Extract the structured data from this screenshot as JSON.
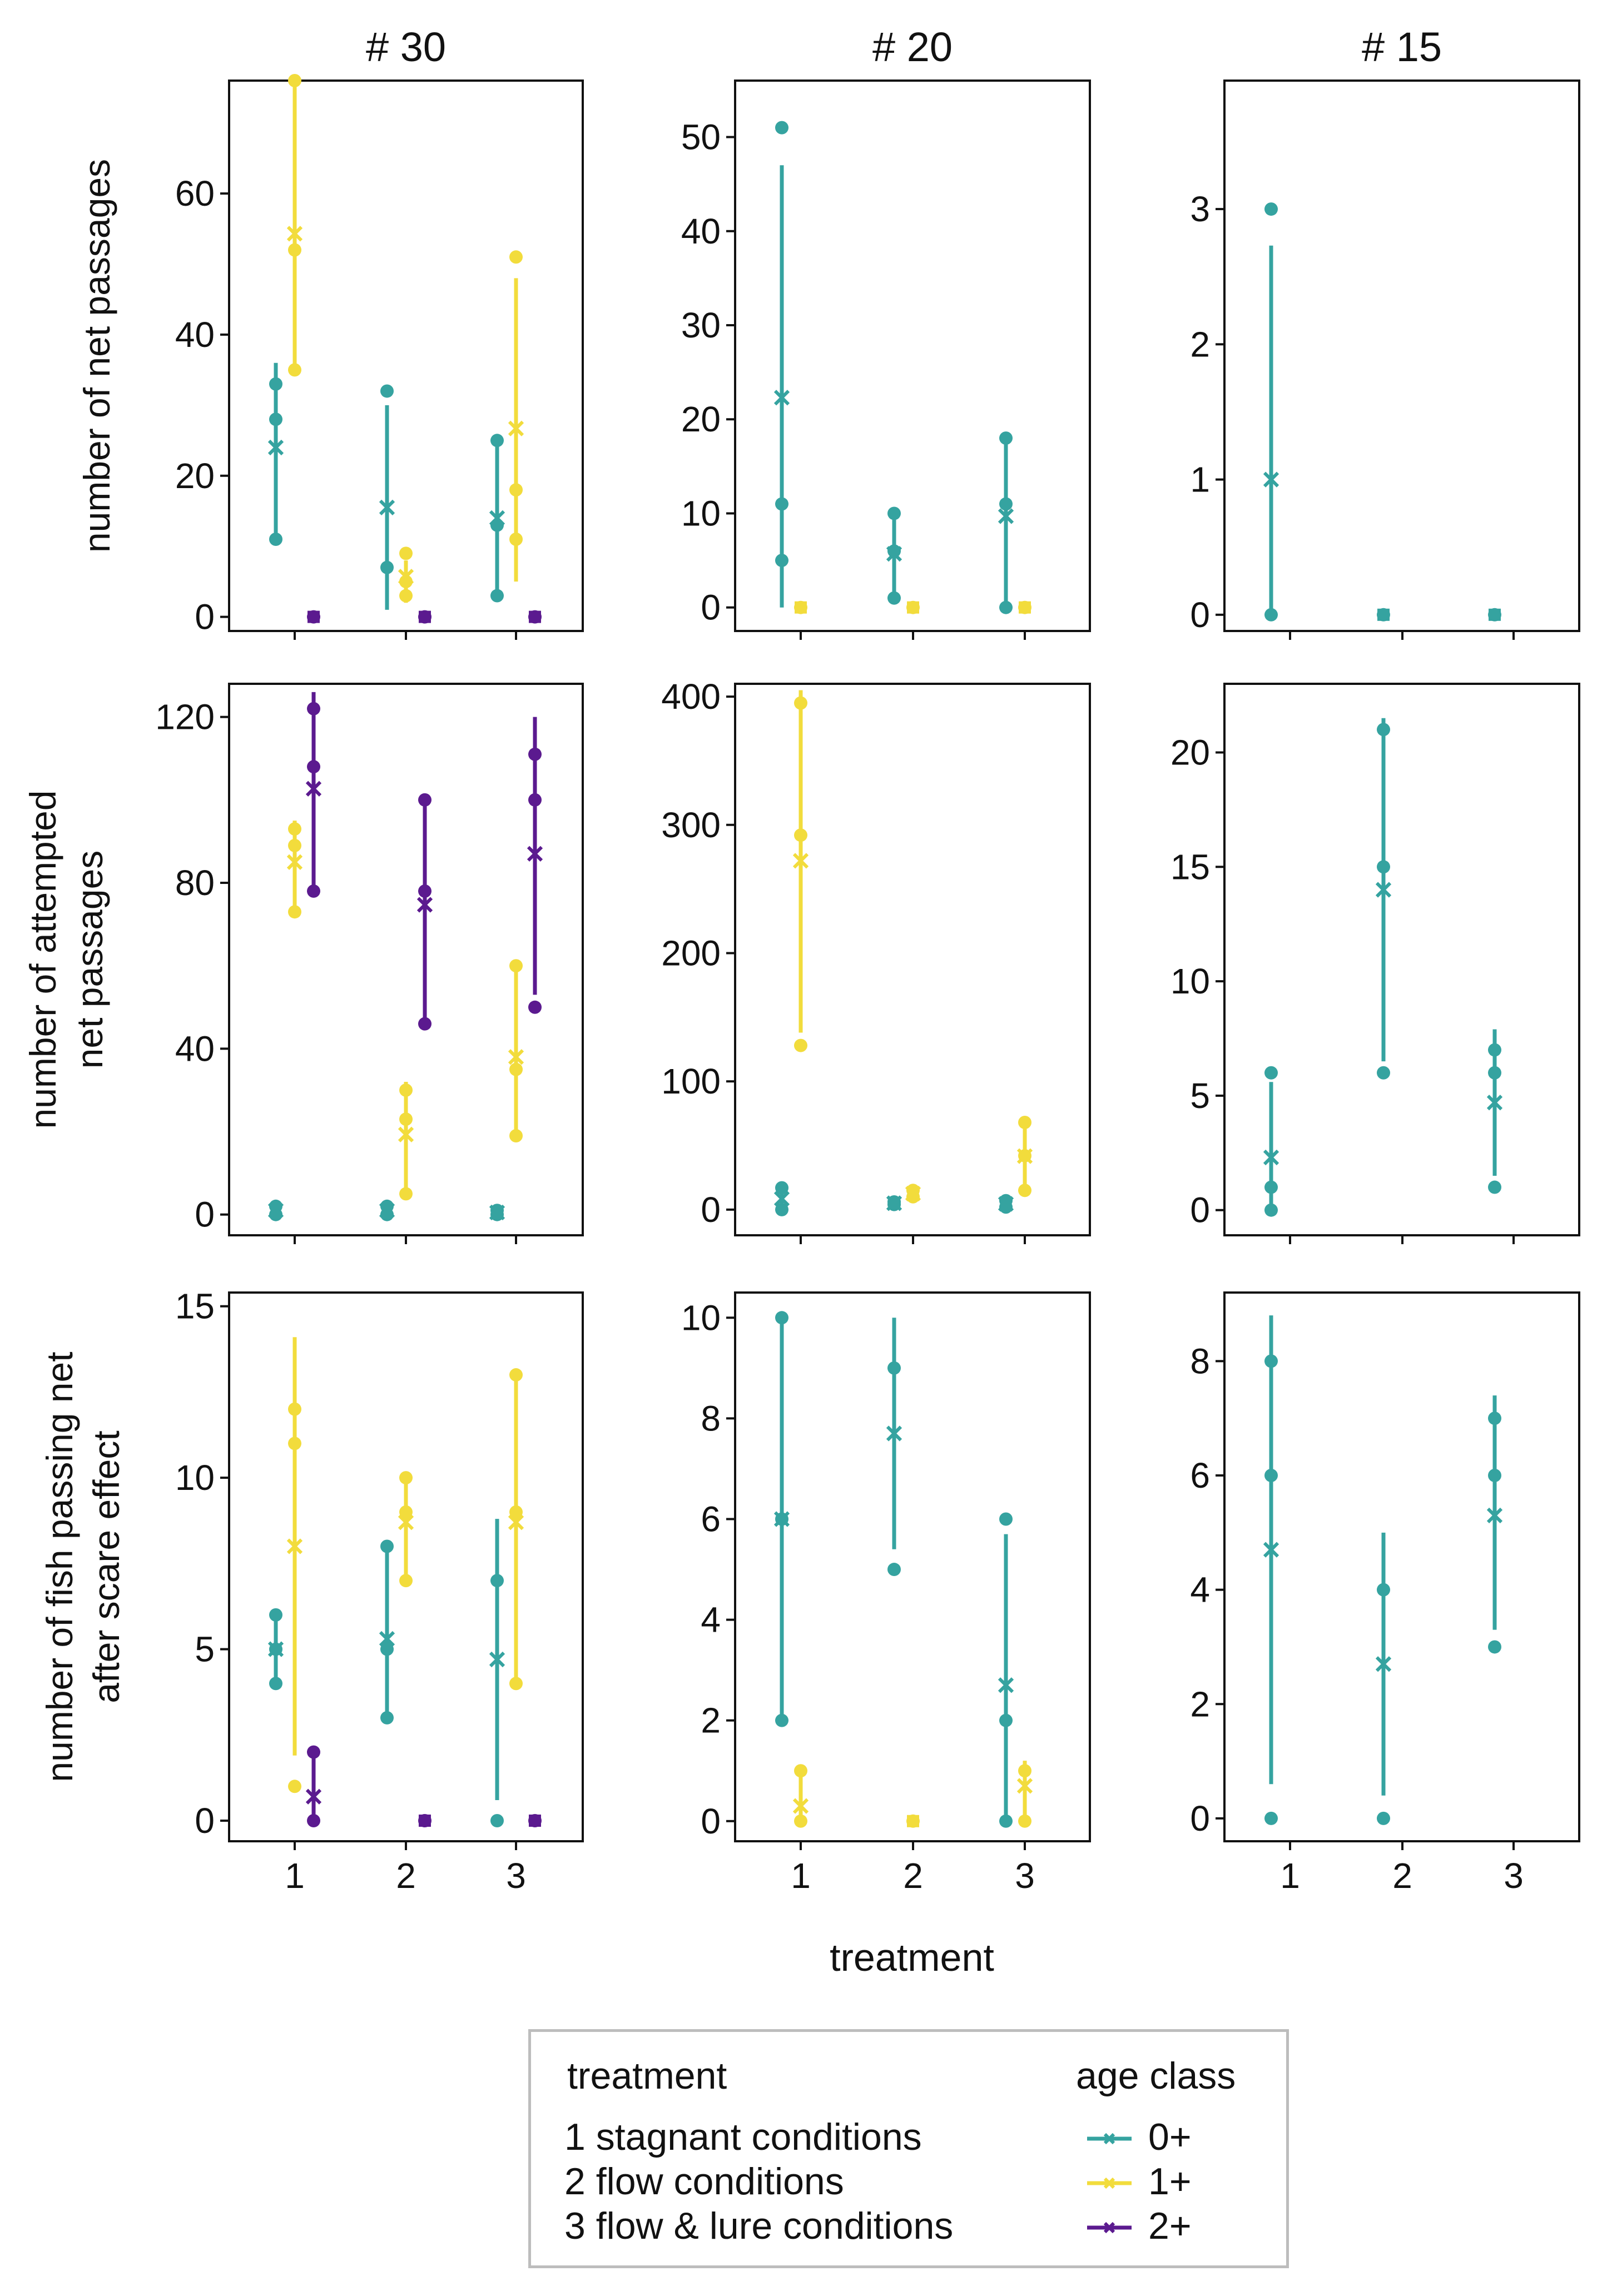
{
  "chart_data": {
    "type": "scatter",
    "xlabel": "treatment",
    "columns": [
      "# 30",
      "# 20",
      "# 15"
    ],
    "rows": [
      "number of net passages",
      "number of attempted\nnet passages",
      "number of fish passing net\nafter scare effect"
    ],
    "x_ticks": [
      "1",
      "2",
      "3"
    ],
    "age_classes": [
      "0+",
      "1+",
      "2+"
    ],
    "colors": {
      "0+": "#35a3a0",
      "1+": "#f2dc3c",
      "2+": "#5b1a8f"
    },
    "panels": [
      {
        "id": "r1c1",
        "ylim": [
          -2,
          76
        ],
        "yticks": [
          0,
          20,
          40,
          60
        ],
        "series": [
          {
            "age": "0+",
            "t": 1,
            "points": [
              33,
              28,
              11
            ],
            "mean": 24,
            "ci": [
              11,
              36
            ]
          },
          {
            "age": "1+",
            "t": 1,
            "points": [
              76,
              52,
              35
            ],
            "mean": 54.3,
            "ci": [
              35,
              76
            ]
          },
          {
            "age": "2+",
            "t": 1,
            "points": [
              0
            ],
            "mean": 0,
            "ci": null
          },
          {
            "age": "0+",
            "t": 2,
            "points": [
              32,
              7
            ],
            "mean": 15.5,
            "ci": [
              1,
              30
            ]
          },
          {
            "age": "1+",
            "t": 2,
            "points": [
              9,
              5,
              3
            ],
            "mean": 5.7,
            "ci": [
              2,
              8
            ]
          },
          {
            "age": "2+",
            "t": 2,
            "points": [
              0
            ],
            "mean": 0,
            "ci": null
          },
          {
            "age": "0+",
            "t": 3,
            "points": [
              25,
              13,
              3
            ],
            "mean": 14,
            "ci": [
              3,
              25
            ]
          },
          {
            "age": "1+",
            "t": 3,
            "points": [
              51,
              18,
              11
            ],
            "mean": 26.7,
            "ci": [
              5,
              48
            ]
          },
          {
            "age": "2+",
            "t": 3,
            "points": [
              0
            ],
            "mean": 0,
            "ci": null
          }
        ]
      },
      {
        "id": "r1c2",
        "ylim": [
          -2.5,
          56
        ],
        "yticks": [
          0,
          10,
          20,
          30,
          40,
          50
        ],
        "series": [
          {
            "age": "0+",
            "t": 1,
            "points": [
              51,
              11,
              5
            ],
            "mean": 22.3,
            "ci": [
              0,
              47
            ]
          },
          {
            "age": "1+",
            "t": 1,
            "points": [
              0
            ],
            "mean": 0,
            "ci": null
          },
          {
            "age": "0+",
            "t": 2,
            "points": [
              10,
              6,
              1
            ],
            "mean": 5.7,
            "ci": [
              1,
              10
            ]
          },
          {
            "age": "1+",
            "t": 2,
            "points": [
              0
            ],
            "mean": 0,
            "ci": null
          },
          {
            "age": "0+",
            "t": 3,
            "points": [
              18,
              11,
              0
            ],
            "mean": 9.7,
            "ci": [
              0,
              18
            ]
          },
          {
            "age": "1+",
            "t": 3,
            "points": [
              0
            ],
            "mean": 0,
            "ci": null
          }
        ]
      },
      {
        "id": "r1c3",
        "ylim": [
          -0.12,
          3.95
        ],
        "yticks": [
          0,
          1,
          2,
          3
        ],
        "series": [
          {
            "age": "0+",
            "t": 1,
            "points": [
              3,
              0
            ],
            "mean": 1,
            "ci": [
              0,
              2.73
            ]
          },
          {
            "age": "0+",
            "t": 2,
            "points": [
              0
            ],
            "mean": 0,
            "ci": null
          },
          {
            "age": "0+",
            "t": 3,
            "points": [
              0
            ],
            "mean": 0,
            "ci": null
          }
        ]
      },
      {
        "id": "r2c1",
        "ylim": [
          -5,
          128
        ],
        "yticks": [
          0,
          40,
          80,
          120
        ],
        "series": [
          {
            "age": "0+",
            "t": 1,
            "points": [
              2,
              0
            ],
            "mean": 1,
            "ci": null
          },
          {
            "age": "1+",
            "t": 1,
            "points": [
              93,
              89,
              73
            ],
            "mean": 85,
            "ci": [
              73,
              95
            ]
          },
          {
            "age": "2+",
            "t": 1,
            "points": [
              122,
              108,
              78
            ],
            "mean": 102.7,
            "ci": [
              78,
              126
            ]
          },
          {
            "age": "0+",
            "t": 2,
            "points": [
              2,
              0
            ],
            "mean": 1,
            "ci": null
          },
          {
            "age": "1+",
            "t": 2,
            "points": [
              30,
              23,
              5
            ],
            "mean": 19.3,
            "ci": [
              5,
              32
            ]
          },
          {
            "age": "2+",
            "t": 2,
            "points": [
              100,
              78,
              46
            ],
            "mean": 74.7,
            "ci": [
              46,
              101
            ]
          },
          {
            "age": "0+",
            "t": 3,
            "points": [
              1,
              0
            ],
            "mean": 0.5,
            "ci": null
          },
          {
            "age": "1+",
            "t": 3,
            "points": [
              60,
              35,
              19
            ],
            "mean": 38,
            "ci": [
              19,
              60
            ]
          },
          {
            "age": "2+",
            "t": 3,
            "points": [
              111,
              100,
              50
            ],
            "mean": 87,
            "ci": [
              53,
              120
            ]
          }
        ]
      },
      {
        "id": "r2c2",
        "ylim": [
          -20,
          410
        ],
        "yticks": [
          0,
          100,
          200,
          300,
          400
        ],
        "series": [
          {
            "age": "0+",
            "t": 1,
            "points": [
              17,
              0
            ],
            "mean": 8.5,
            "ci": [
              0,
              17
            ]
          },
          {
            "age": "1+",
            "t": 1,
            "points": [
              395,
              292,
              128
            ],
            "mean": 272,
            "ci": [
              138,
              405
            ]
          },
          {
            "age": "0+",
            "t": 2,
            "points": [
              6,
              4
            ],
            "mean": 5,
            "ci": [
              3,
              7
            ]
          },
          {
            "age": "1+",
            "t": 2,
            "points": [
              15,
              10
            ],
            "mean": 12.5,
            "ci": [
              9,
              16
            ]
          },
          {
            "age": "0+",
            "t": 3,
            "points": [
              7,
              2
            ],
            "mean": 4.5,
            "ci": [
              1,
              8
            ]
          },
          {
            "age": "1+",
            "t": 3,
            "points": [
              68,
              42,
              15
            ],
            "mean": 41.7,
            "ci": [
              15,
              70
            ]
          }
        ]
      },
      {
        "id": "r2c3",
        "ylim": [
          -1.1,
          23
        ],
        "yticks": [
          0,
          5,
          10,
          15,
          20
        ],
        "series": [
          {
            "age": "0+",
            "t": 1,
            "points": [
              6,
              1,
              0
            ],
            "mean": 2.3,
            "ci": [
              0,
              5.6
            ]
          },
          {
            "age": "0+",
            "t": 2,
            "points": [
              21,
              15,
              6
            ],
            "mean": 14,
            "ci": [
              6.5,
              21.5
            ]
          },
          {
            "age": "0+",
            "t": 3,
            "points": [
              7,
              6,
              1
            ],
            "mean": 4.7,
            "ci": [
              1.5,
              7.9
            ]
          }
        ]
      },
      {
        "id": "r3c1",
        "ylim": [
          -0.6,
          15.4
        ],
        "yticks": [
          0,
          5,
          10,
          15
        ],
        "series": [
          {
            "age": "0+",
            "t": 1,
            "points": [
              6,
              5,
              4
            ],
            "mean": 5,
            "ci": [
              4,
              6
            ]
          },
          {
            "age": "1+",
            "t": 1,
            "points": [
              12,
              11,
              1
            ],
            "mean": 8,
            "ci": [
              1.9,
              14.1
            ]
          },
          {
            "age": "2+",
            "t": 1,
            "points": [
              2,
              0
            ],
            "mean": 0.7,
            "ci": [
              0,
              2
            ]
          },
          {
            "age": "0+",
            "t": 2,
            "points": [
              8,
              5,
              3
            ],
            "mean": 5.3,
            "ci": [
              3,
              8
            ]
          },
          {
            "age": "1+",
            "t": 2,
            "points": [
              10,
              9,
              7
            ],
            "mean": 8.7,
            "ci": [
              7,
              10
            ]
          },
          {
            "age": "2+",
            "t": 2,
            "points": [
              0
            ],
            "mean": 0,
            "ci": null
          },
          {
            "age": "0+",
            "t": 3,
            "points": [
              7,
              0
            ],
            "mean": 4.7,
            "ci": [
              0.6,
              8.8
            ]
          },
          {
            "age": "1+",
            "t": 3,
            "points": [
              13,
              9,
              4
            ],
            "mean": 8.7,
            "ci": [
              4,
              13
            ]
          },
          {
            "age": "2+",
            "t": 3,
            "points": [
              0
            ],
            "mean": 0,
            "ci": null
          }
        ]
      },
      {
        "id": "r3c2",
        "ylim": [
          -0.4,
          10.5
        ],
        "yticks": [
          0,
          2,
          4,
          6,
          8,
          10
        ],
        "series": [
          {
            "age": "0+",
            "t": 1,
            "points": [
              10,
              6,
              2
            ],
            "mean": 6,
            "ci": [
              2,
              10
            ]
          },
          {
            "age": "1+",
            "t": 1,
            "points": [
              1,
              0
            ],
            "mean": 0.3,
            "ci": [
              0,
              1
            ]
          },
          {
            "age": "0+",
            "t": 2,
            "points": [
              9,
              5
            ],
            "mean": 7.7,
            "ci": [
              5.4,
              10
            ]
          },
          {
            "age": "1+",
            "t": 2,
            "points": [
              0
            ],
            "mean": 0,
            "ci": null
          },
          {
            "age": "0+",
            "t": 3,
            "points": [
              6,
              2,
              0
            ],
            "mean": 2.7,
            "ci": [
              0,
              5.7
            ]
          },
          {
            "age": "1+",
            "t": 3,
            "points": [
              1,
              0
            ],
            "mean": 0.7,
            "ci": [
              0,
              1.2
            ]
          }
        ]
      },
      {
        "id": "r3c3",
        "ylim": [
          -0.4,
          9.2
        ],
        "yticks": [
          0,
          2,
          4,
          6,
          8
        ],
        "series": [
          {
            "age": "0+",
            "t": 1,
            "points": [
              8,
              6,
              0
            ],
            "mean": 4.7,
            "ci": [
              0.6,
              8.8
            ]
          },
          {
            "age": "0+",
            "t": 2,
            "points": [
              4,
              0
            ],
            "mean": 2.7,
            "ci": [
              0.4,
              5
            ]
          },
          {
            "age": "0+",
            "t": 3,
            "points": [
              7,
              6,
              3
            ],
            "mean": 5.3,
            "ci": [
              3.3,
              7.4
            ]
          }
        ]
      }
    ]
  },
  "legend": {
    "treatment_title": "treatment",
    "treatments": [
      "1 stagnant conditions",
      "2 flow conditions",
      "3 flow & lure conditions"
    ],
    "age_title": "age class",
    "ages": [
      "0+",
      "1+",
      "2+"
    ]
  }
}
